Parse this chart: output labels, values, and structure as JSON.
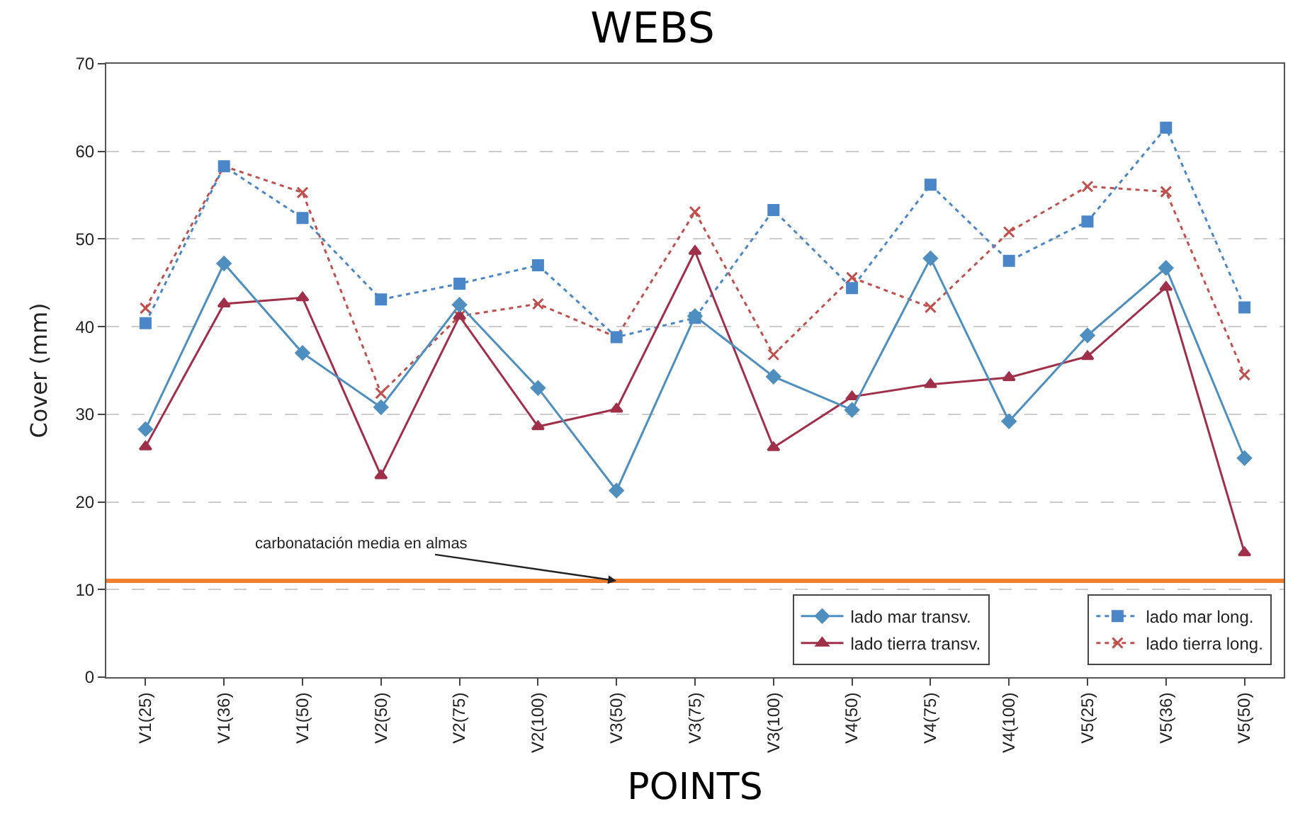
{
  "chart_data": {
    "type": "line",
    "title": "WEBS",
    "xlabel": "POINTS",
    "ylabel": "Cover (mm)",
    "categories": [
      "V1(25)",
      "V1(36)",
      "V1(50)",
      "V2(50)",
      "V2(75)",
      "V2(100)",
      "V3(50)",
      "V3(75)",
      "V3(100)",
      "V4(50)",
      "V4(75)",
      "V4(100)",
      "V5(25)",
      "V5(36)",
      "V5(50)"
    ],
    "series": [
      {
        "name": "lado mar transv.",
        "color": "#4f8fc0",
        "marker": "diamond",
        "line_style": "solid",
        "values": [
          28.3,
          47.2,
          37,
          30.8,
          42.5,
          33,
          21.3,
          41.2,
          34.3,
          30.5,
          47.8,
          29.2,
          39,
          46.7,
          25
        ]
      },
      {
        "name": "lado tierra transv.",
        "color": "#a0304a",
        "marker": "triangle",
        "line_style": "solid",
        "values": [
          26.3,
          42.6,
          43.3,
          23,
          41.2,
          28.6,
          30.6,
          48.6,
          26.2,
          32,
          33.4,
          34.2,
          36.6,
          44.5,
          14.2
        ]
      },
      {
        "name": "lado mar long.",
        "color": "#4a86c8",
        "marker": "square",
        "line_style": "dotted",
        "values": [
          40.4,
          58.3,
          52.4,
          43.1,
          44.9,
          47,
          38.8,
          41,
          53.3,
          44.4,
          56.2,
          47.5,
          52,
          62.7,
          42.2
        ]
      },
      {
        "name": "lado tierra long.",
        "color": "#c0504d",
        "marker": "cross",
        "line_style": "dotted",
        "values": [
          42.1,
          58.3,
          55.3,
          32.4,
          41.2,
          42.6,
          38.8,
          53.1,
          36.8,
          45.6,
          42.2,
          50.8,
          56,
          55.4,
          34.5
        ]
      }
    ],
    "ylim": [
      0,
      70
    ],
    "yticks": [
      0,
      10,
      20,
      30,
      40,
      50,
      60,
      70
    ],
    "grid": "y",
    "legend": "bottom right",
    "ref_lines": [
      {
        "axis": "y",
        "value": 11,
        "color": "#f08030"
      }
    ],
    "annotations": [
      {
        "text": "carbonatación media en almas",
        "x": "V3(50)",
        "y": 11
      }
    ]
  }
}
